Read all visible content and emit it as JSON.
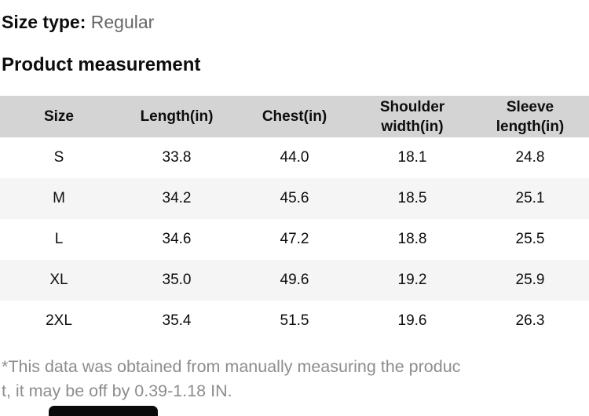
{
  "colors": {
    "header_bg": "#d4d4d4",
    "alt_row_bg": "#f5f5f5",
    "text_color": "#0d0d0d",
    "muted_color": "#666666",
    "note_color": "#8d8d8d",
    "button_color": "#0a0a0a"
  },
  "page": {
    "size_type_label": "Size type:",
    "size_type_value": "Regular",
    "section_title": "Product measurement"
  },
  "table": {
    "columns": [
      "Size",
      "Length(in)",
      "Chest(in)",
      "Shoulder width(in)",
      "Sleeve length(in)"
    ],
    "rows": [
      {
        "size": "S",
        "values": [
          "33.8",
          "44.0",
          "18.1",
          "24.8"
        ]
      },
      {
        "size": "M",
        "values": [
          "34.2",
          "45.6",
          "18.5",
          "25.1"
        ]
      },
      {
        "size": "L",
        "values": [
          "34.6",
          "47.2",
          "18.8",
          "25.5"
        ]
      },
      {
        "size": "XL",
        "values": [
          "35.0",
          "49.6",
          "19.2",
          "25.9"
        ]
      },
      {
        "size": "2XL",
        "values": [
          "35.4",
          "51.5",
          "19.6",
          "26.3"
        ]
      }
    ]
  },
  "footnote": {
    "lines": [
      "*This data was obtained from manually measuring the produc",
      "t, it may be off by 0.39-1.18 IN."
    ]
  }
}
